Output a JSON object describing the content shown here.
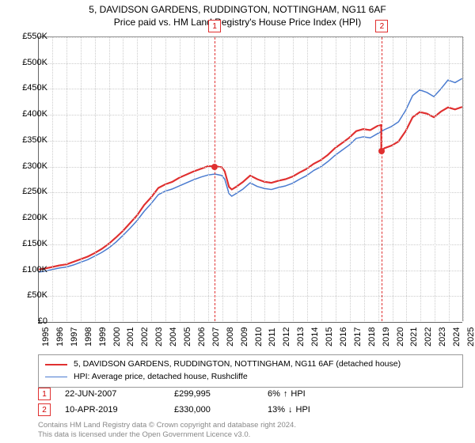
{
  "title": {
    "line1": "5, DAVIDSON GARDENS, RUDDINGTON, NOTTINGHAM, NG11 6AF",
    "line2": "Price paid vs. HM Land Registry's House Price Index (HPI)",
    "fontsize": 12
  },
  "chart": {
    "type": "line",
    "background_color": "#ffffff",
    "grid_color": "#cccccc",
    "axis_color": "#666666",
    "y": {
      "min": 0,
      "max": 550000,
      "step": 50000,
      "labels": [
        "£0",
        "£50K",
        "£100K",
        "£150K",
        "£200K",
        "£250K",
        "£300K",
        "£350K",
        "£400K",
        "£450K",
        "£500K",
        "£550K"
      ],
      "label_fontsize": 11
    },
    "x": {
      "min": 1995,
      "max": 2025,
      "step": 1,
      "labels": [
        "1995",
        "1996",
        "1997",
        "1998",
        "1999",
        "2000",
        "2001",
        "2002",
        "2003",
        "2004",
        "2005",
        "2006",
        "2007",
        "2008",
        "2009",
        "2010",
        "2011",
        "2012",
        "2013",
        "2014",
        "2015",
        "2016",
        "2017",
        "2018",
        "2019",
        "2020",
        "2021",
        "2022",
        "2023",
        "2024",
        "2025"
      ],
      "label_fontsize": 11
    },
    "series": [
      {
        "name": "5, DAVIDSON GARDENS, RUDDINGTON, NOTTINGHAM, NG11 6AF (detached house)",
        "color": "#e03030",
        "line_width": 2,
        "data": [
          [
            1995,
            100000
          ],
          [
            1995.5,
            102000
          ],
          [
            1996,
            105000
          ],
          [
            1996.5,
            108000
          ],
          [
            1997,
            110000
          ],
          [
            1997.5,
            115000
          ],
          [
            1998,
            120000
          ],
          [
            1998.5,
            125000
          ],
          [
            1999,
            132000
          ],
          [
            1999.5,
            140000
          ],
          [
            2000,
            150000
          ],
          [
            2000.5,
            162000
          ],
          [
            2001,
            175000
          ],
          [
            2001.5,
            190000
          ],
          [
            2002,
            205000
          ],
          [
            2002.5,
            225000
          ],
          [
            2003,
            240000
          ],
          [
            2003.5,
            258000
          ],
          [
            2004,
            265000
          ],
          [
            2004.5,
            270000
          ],
          [
            2005,
            278000
          ],
          [
            2005.5,
            284000
          ],
          [
            2006,
            290000
          ],
          [
            2006.5,
            295000
          ],
          [
            2007,
            300000
          ],
          [
            2007.47,
            299995
          ],
          [
            2007.5,
            300000
          ],
          [
            2008,
            298000
          ],
          [
            2008.2,
            290000
          ],
          [
            2008.5,
            260000
          ],
          [
            2008.7,
            255000
          ],
          [
            2009,
            260000
          ],
          [
            2009.5,
            270000
          ],
          [
            2010,
            282000
          ],
          [
            2010.5,
            275000
          ],
          [
            2011,
            270000
          ],
          [
            2011.5,
            268000
          ],
          [
            2012,
            272000
          ],
          [
            2012.5,
            275000
          ],
          [
            2013,
            280000
          ],
          [
            2013.5,
            288000
          ],
          [
            2014,
            295000
          ],
          [
            2014.5,
            305000
          ],
          [
            2015,
            312000
          ],
          [
            2015.5,
            322000
          ],
          [
            2016,
            335000
          ],
          [
            2016.5,
            345000
          ],
          [
            2017,
            355000
          ],
          [
            2017.5,
            368000
          ],
          [
            2018,
            372000
          ],
          [
            2018.5,
            370000
          ],
          [
            2019,
            378000
          ],
          [
            2019.27,
            380000
          ],
          [
            2019.28,
            330000
          ],
          [
            2019.5,
            335000
          ],
          [
            2020,
            340000
          ],
          [
            2020.5,
            348000
          ],
          [
            2021,
            368000
          ],
          [
            2021.5,
            395000
          ],
          [
            2022,
            405000
          ],
          [
            2022.5,
            402000
          ],
          [
            2023,
            395000
          ],
          [
            2023.5,
            406000
          ],
          [
            2024,
            414000
          ],
          [
            2024.5,
            410000
          ],
          [
            2025,
            415000
          ]
        ]
      },
      {
        "name": "HPI: Average price, detached house, Rushcliffe",
        "color": "#4a7bd0",
        "line_width": 1.5,
        "data": [
          [
            1995,
            95000
          ],
          [
            1995.5,
            97000
          ],
          [
            1996,
            100000
          ],
          [
            1996.5,
            103000
          ],
          [
            1997,
            105000
          ],
          [
            1997.5,
            109000
          ],
          [
            1998,
            114000
          ],
          [
            1998.5,
            119000
          ],
          [
            1999,
            126000
          ],
          [
            1999.5,
            133000
          ],
          [
            2000,
            142000
          ],
          [
            2000.5,
            153000
          ],
          [
            2001,
            166000
          ],
          [
            2001.5,
            180000
          ],
          [
            2002,
            195000
          ],
          [
            2002.5,
            213000
          ],
          [
            2003,
            228000
          ],
          [
            2003.5,
            245000
          ],
          [
            2004,
            252000
          ],
          [
            2004.5,
            256000
          ],
          [
            2005,
            262000
          ],
          [
            2005.5,
            268000
          ],
          [
            2006,
            274000
          ],
          [
            2006.5,
            279000
          ],
          [
            2007,
            283000
          ],
          [
            2007.5,
            285000
          ],
          [
            2008,
            282000
          ],
          [
            2008.2,
            275000
          ],
          [
            2008.5,
            247000
          ],
          [
            2008.7,
            242000
          ],
          [
            2009,
            247000
          ],
          [
            2009.5,
            256000
          ],
          [
            2010,
            268000
          ],
          [
            2010.5,
            261000
          ],
          [
            2011,
            257000
          ],
          [
            2011.5,
            255000
          ],
          [
            2012,
            259000
          ],
          [
            2012.5,
            262000
          ],
          [
            2013,
            267000
          ],
          [
            2013.5,
            275000
          ],
          [
            2014,
            282000
          ],
          [
            2014.5,
            292000
          ],
          [
            2015,
            299000
          ],
          [
            2015.5,
            309000
          ],
          [
            2016,
            321000
          ],
          [
            2016.5,
            331000
          ],
          [
            2017,
            341000
          ],
          [
            2017.5,
            354000
          ],
          [
            2018,
            357000
          ],
          [
            2018.5,
            355000
          ],
          [
            2019,
            363000
          ],
          [
            2019.5,
            371000
          ],
          [
            2020,
            377000
          ],
          [
            2020.5,
            386000
          ],
          [
            2021,
            408000
          ],
          [
            2021.5,
            437000
          ],
          [
            2022,
            448000
          ],
          [
            2022.5,
            443000
          ],
          [
            2023,
            435000
          ],
          [
            2023.5,
            450000
          ],
          [
            2024,
            467000
          ],
          [
            2024.5,
            462000
          ],
          [
            2025,
            470000
          ]
        ]
      }
    ],
    "markers": [
      {
        "id": "1",
        "x": 2007.47,
        "y": 299995,
        "line_color": "#e03030"
      },
      {
        "id": "2",
        "x": 2019.27,
        "y": 330000,
        "line_color": "#e03030"
      }
    ]
  },
  "legend": {
    "border_color": "#999999",
    "items": [
      {
        "color": "#e03030",
        "width": 2,
        "label": "5, DAVIDSON GARDENS, RUDDINGTON, NOTTINGHAM, NG11 6AF (detached house)"
      },
      {
        "color": "#4a7bd0",
        "width": 1.5,
        "label": "HPI: Average price, detached house, Rushcliffe"
      }
    ]
  },
  "transactions": [
    {
      "id": "1",
      "date": "22-JUN-2007",
      "price": "£299,995",
      "pct": "6%",
      "arrow": "↑",
      "suffix": "HPI"
    },
    {
      "id": "2",
      "date": "10-APR-2019",
      "price": "£330,000",
      "pct": "13%",
      "arrow": "↓",
      "suffix": "HPI"
    }
  ],
  "footer": {
    "line1": "Contains HM Land Registry data © Crown copyright and database right 2024.",
    "line2": "This data is licensed under the Open Government Licence v3.0.",
    "color": "#888888"
  }
}
